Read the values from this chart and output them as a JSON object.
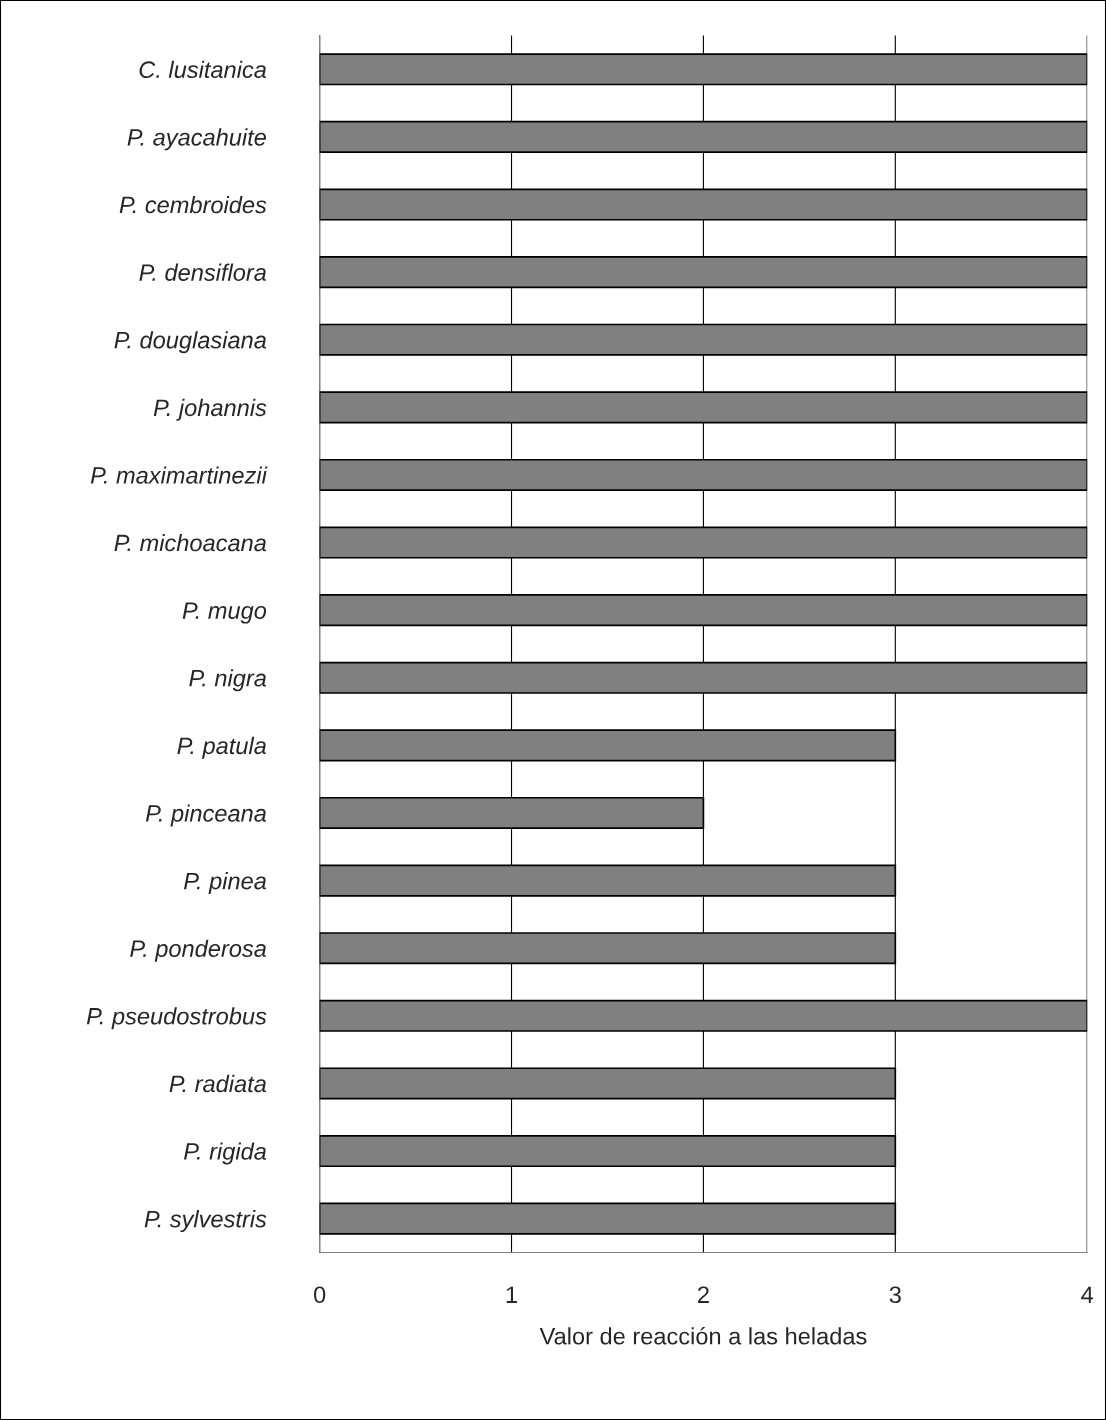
{
  "chart_data": {
    "type": "bar",
    "orientation": "horizontal",
    "xlabel": "Valor de reacción a las heladas",
    "categories": [
      "C. lusitanica",
      "P. ayacahuite",
      "P. cembroides",
      "P. densiflora",
      "P. douglasiana",
      "P. johannis",
      "P. maximartinezii",
      "P. michoacana",
      "P. mugo",
      "P. nigra",
      "P. patula",
      "P. pinceana",
      "P. pinea",
      "P. ponderosa",
      "P. pseudostrobus",
      "P. radiata",
      "P. rigida",
      "P. sylvestris"
    ],
    "values": [
      4,
      4,
      4,
      4,
      4,
      4,
      4,
      4,
      4,
      4,
      3,
      2,
      3,
      3,
      4,
      3,
      3,
      3
    ],
    "color": "#808080",
    "xlim": [
      0,
      4
    ],
    "xticks": [
      0,
      1,
      2,
      3,
      4
    ],
    "grid": "x",
    "legend": false
  }
}
